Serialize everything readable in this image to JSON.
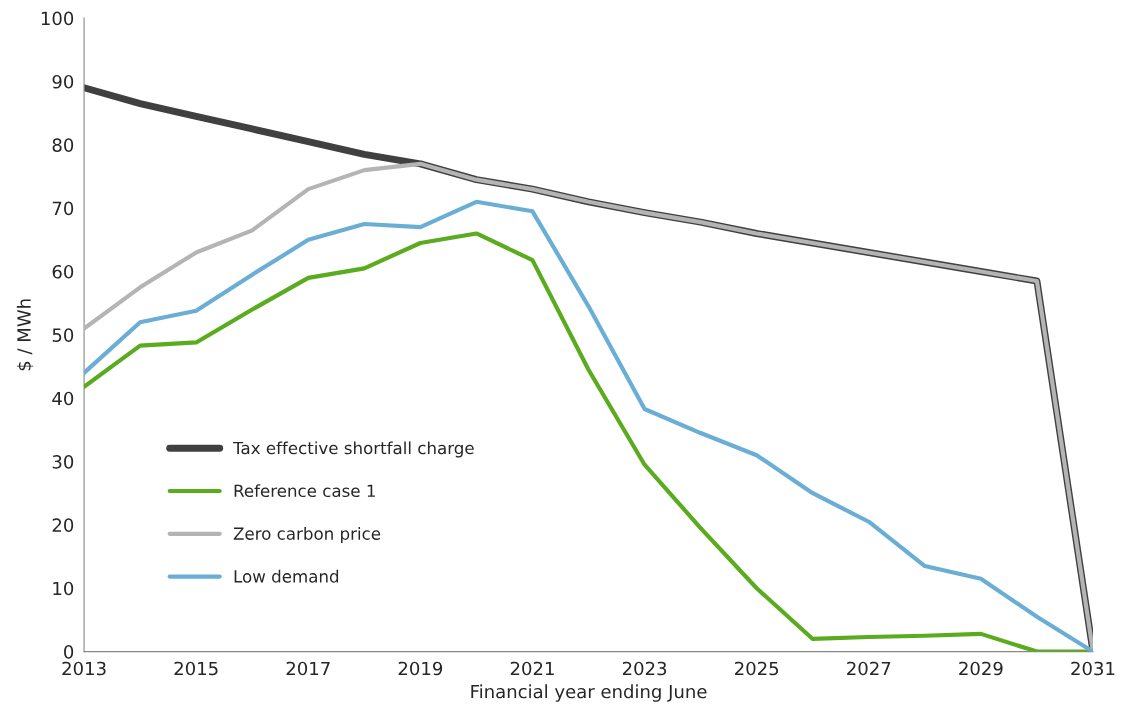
{
  "chart_data": {
    "type": "line",
    "xlabel": "Financial year ending June",
    "ylabel": "$ / MWh",
    "x": [
      2013,
      2014,
      2015,
      2016,
      2017,
      2018,
      2019,
      2020,
      2021,
      2022,
      2023,
      2024,
      2025,
      2026,
      2027,
      2028,
      2029,
      2030,
      2031
    ],
    "series": [
      {
        "name": "Tax effective shortfall charge",
        "color": "#404040",
        "values": [
          89,
          86.5,
          84.5,
          82.5,
          80.5,
          78.5,
          77,
          74.5,
          73,
          71,
          69.3,
          67.8,
          66,
          64.5,
          63,
          61.5,
          60,
          58.5,
          0
        ]
      },
      {
        "name": "Reference case 1",
        "color": "#5aab1e",
        "values": [
          41.8,
          48.3,
          48.8,
          54,
          59,
          60.5,
          64.5,
          66,
          61.8,
          44.5,
          29.5,
          19.5,
          10,
          2,
          2.3,
          2.5,
          2.8,
          0,
          0
        ]
      },
      {
        "name": "Zero carbon price",
        "color": "#b4b4b4",
        "values": [
          51,
          57.5,
          63,
          66.5,
          73,
          76,
          77,
          74.5,
          73,
          71,
          69.3,
          67.8,
          66,
          64.5,
          63,
          61.5,
          60,
          58.5,
          0
        ]
      },
      {
        "name": "Low demand",
        "color": "#6aaed6",
        "values": [
          44,
          52,
          53.8,
          59.5,
          65,
          67.5,
          67,
          71,
          69.5,
          54.5,
          38.3,
          34.5,
          31,
          25,
          20.5,
          13.5,
          11.5,
          5.5,
          0
        ]
      }
    ],
    "xlim": [
      2013,
      2031
    ],
    "xticks": [
      2013,
      2015,
      2017,
      2019,
      2021,
      2023,
      2025,
      2027,
      2029,
      2031
    ],
    "ylim": [
      0,
      100
    ],
    "yticks": [
      0,
      10,
      20,
      30,
      40,
      50,
      60,
      70,
      80,
      90,
      100
    ],
    "grid": false,
    "legend": "bottom left",
    "marker": "none",
    "line_style": "solid"
  }
}
